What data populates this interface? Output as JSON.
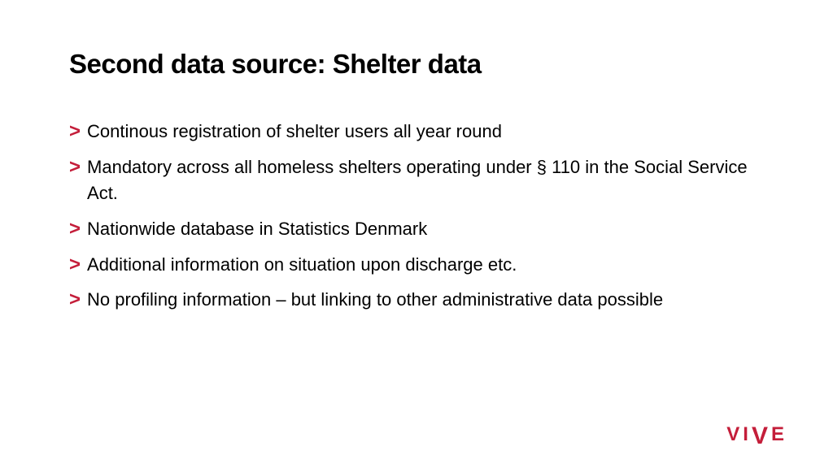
{
  "slide": {
    "title": "Second data source: Shelter data",
    "background_color": "#ffffff",
    "title_color": "#000000",
    "title_fontsize": 33,
    "title_fontweight": 800,
    "body_fontsize": 22,
    "body_color": "#000000",
    "bullet_marker": ">",
    "bullet_marker_color": "#c41e3a",
    "bullets": [
      "Continous registration of shelter users all year round",
      "Mandatory across all homeless shelters operating under § 110 in the Social Service Act.",
      "Nationwide database in Statistics Denmark",
      "Additional information on situation upon discharge etc.",
      "No profiling information – but linking to other administrative data possible"
    ]
  },
  "logo": {
    "text": "VIVE",
    "color": "#c41e3a",
    "letters": [
      "V",
      "I",
      "V",
      "E"
    ]
  }
}
